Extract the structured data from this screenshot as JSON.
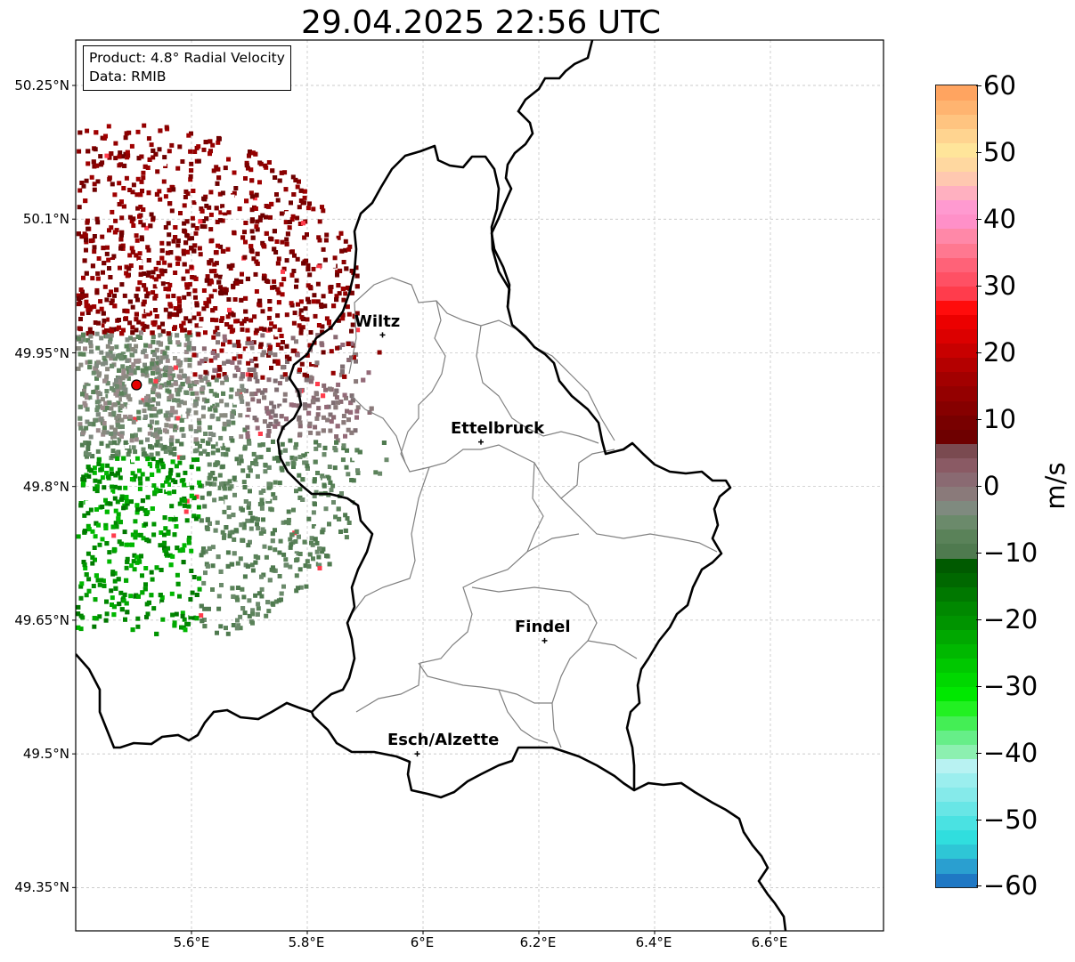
{
  "title": "29.04.2025 22:56 UTC",
  "info": {
    "product": "Product: 4.8° Radial Velocity",
    "data": "Data: RMIB"
  },
  "lat_ticks": [
    "50.25°N",
    "50.1°N",
    "49.95°N",
    "49.8°N",
    "49.65°N",
    "49.5°N",
    "49.35°N"
  ],
  "lon_ticks": [
    "5.6°E",
    "5.8°E",
    "6°E",
    "6.2°E",
    "6.4°E",
    "6.6°E"
  ],
  "cities": [
    {
      "name": "Wiltz",
      "lon": 5.93,
      "lat": 49.97
    },
    {
      "name": "Ettelbruck",
      "lon": 6.1,
      "lat": 49.85
    },
    {
      "name": "Findel",
      "lon": 6.21,
      "lat": 49.627
    },
    {
      "name": "Esch/Alzette",
      "lon": 5.99,
      "lat": 49.5
    }
  ],
  "radar_site": {
    "lon": 5.505,
    "lat": 49.914,
    "color": "#e60000"
  },
  "colorbar": {
    "unit": "m/s",
    "min": -60,
    "max": 60,
    "tick_labels": [
      "60",
      "50",
      "40",
      "30",
      "20",
      "10",
      "0",
      "−10",
      "−20",
      "−30",
      "−40",
      "−50",
      "−60"
    ],
    "colors": [
      "#1f78c4",
      "#2a9fd0",
      "#2ec6d6",
      "#30dede",
      "#4ae2e2",
      "#68e6e6",
      "#85eaea",
      "#9beeee",
      "#b8f2f2",
      "#8cf0b0",
      "#66ee88",
      "#44ee55",
      "#22f022",
      "#00e800",
      "#00d800",
      "#00c800",
      "#00b800",
      "#00a800",
      "#009400",
      "#008800",
      "#007800",
      "#006800",
      "#005a00",
      "#4f7a4f",
      "#5a8259",
      "#6b8a6b",
      "#7f8a7f",
      "#8a7a7a",
      "#8a6a72",
      "#8a5a64",
      "#7a4a50",
      "#6e0000",
      "#780000",
      "#860000",
      "#940000",
      "#a20000",
      "#b40000",
      "#c80000",
      "#dc0000",
      "#ec0000",
      "#ff0c0c",
      "#ff3c4c",
      "#ff5064",
      "#ff6278",
      "#ff7890",
      "#ff88a8",
      "#ff90c8",
      "#ff9ad0",
      "#ffb0c0",
      "#ffc8b0",
      "#ffd8a0",
      "#ffe59a",
      "#ffd490",
      "#ffc480",
      "#ffb470",
      "#ffa460"
    ]
  },
  "colors": {
    "border_country": "#000000",
    "border_canton": "#808080",
    "grid": "#bbbbbb"
  }
}
